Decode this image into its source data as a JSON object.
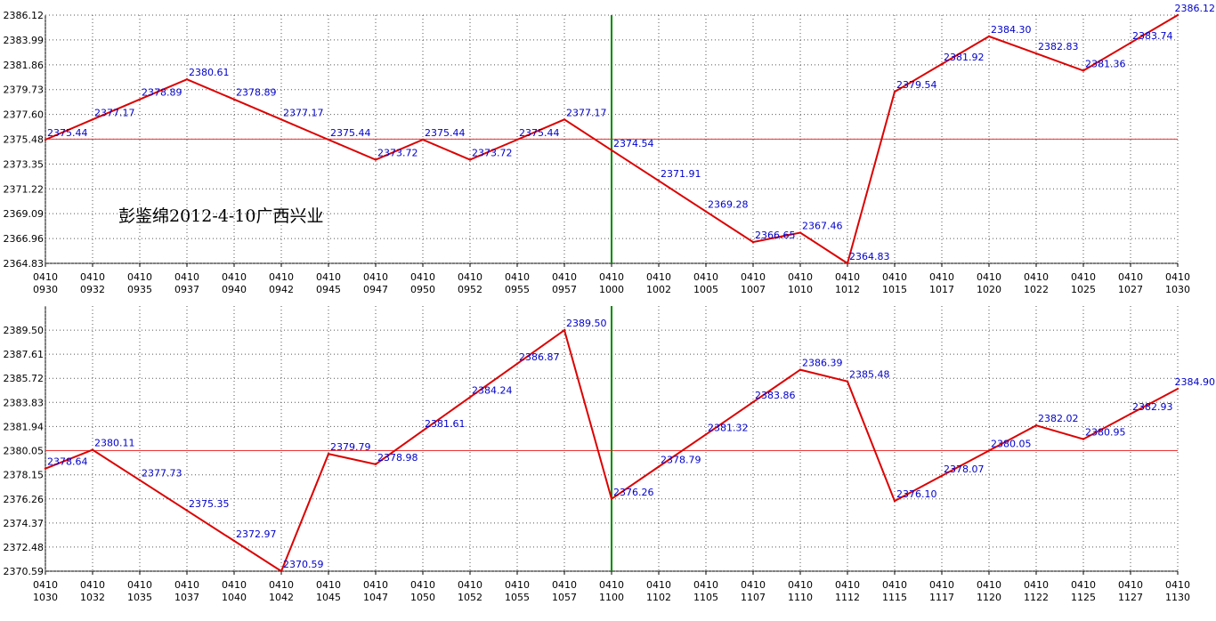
{
  "chart_data": [
    {
      "type": "line",
      "annotation": "彭鉴绵2012-4-10广西兴业",
      "ylim": [
        2364.83,
        2386.12
      ],
      "yticks": [
        "2386.12",
        "2383.99",
        "2381.86",
        "2379.73",
        "2377.60",
        "2375.48",
        "2373.35",
        "2371.22",
        "2369.09",
        "2366.96",
        "2364.83"
      ],
      "xticks": [
        [
          "0410",
          "0930"
        ],
        [
          "0410",
          "0932"
        ],
        [
          "0410",
          "0935"
        ],
        [
          "0410",
          "0937"
        ],
        [
          "0410",
          "0940"
        ],
        [
          "0410",
          "0942"
        ],
        [
          "0410",
          "0945"
        ],
        [
          "0410",
          "0947"
        ],
        [
          "0410",
          "0950"
        ],
        [
          "0410",
          "0952"
        ],
        [
          "0410",
          "0955"
        ],
        [
          "0410",
          "0957"
        ],
        [
          "0410",
          "1000"
        ],
        [
          "0410",
          "1002"
        ],
        [
          "0410",
          "1005"
        ],
        [
          "0410",
          "1007"
        ],
        [
          "0410",
          "1010"
        ],
        [
          "0410",
          "1012"
        ],
        [
          "0410",
          "1015"
        ],
        [
          "0410",
          "1017"
        ],
        [
          "0410",
          "1020"
        ],
        [
          "0410",
          "1022"
        ],
        [
          "0410",
          "1025"
        ],
        [
          "0410",
          "1027"
        ],
        [
          "0410",
          "1030"
        ]
      ],
      "reference_line": 2375.48,
      "marker_tick": "1000",
      "series": [
        {
          "values": [
            2375.44,
            2377.17,
            2378.89,
            2380.61,
            2378.89,
            2377.17,
            2375.44,
            2373.72,
            2375.44,
            2373.72,
            2375.44,
            2377.17,
            2374.54,
            2371.91,
            2369.28,
            2366.65,
            2367.46,
            2364.83,
            2379.54,
            2381.92,
            2384.3,
            2382.83,
            2381.36,
            2383.74,
            2386.12
          ],
          "labels": [
            "2375.44",
            "2377.17",
            "2378.89",
            "2380.61",
            "2378.89",
            "2377.17",
            "2375.44",
            "2373.72",
            "2375.44",
            "2373.72",
            "2375.44",
            "2377.17",
            "2374.54",
            "2371.91",
            "2369.28",
            "2366.65",
            "2367.46",
            "2364.83",
            "2379.54",
            "2381.92",
            "2384.30",
            "2382.83",
            "2381.36",
            "2383.74",
            "2386.12"
          ]
        }
      ],
      "grid": true,
      "colors": {
        "line": "#dd0000",
        "reference": "#ee3333",
        "marker": "#008800",
        "label": "#0000cc",
        "grid": "#555555"
      }
    },
    {
      "type": "line",
      "annotation": "",
      "ylim": [
        2370.59,
        2391.39
      ],
      "yticks": [
        "2389.50",
        "2387.61",
        "2385.72",
        "2383.83",
        "2381.94",
        "2380.05",
        "2378.15",
        "2376.26",
        "2374.37",
        "2372.48",
        "2370.59"
      ],
      "xticks": [
        [
          "0410",
          "1030"
        ],
        [
          "0410",
          "1032"
        ],
        [
          "0410",
          "1035"
        ],
        [
          "0410",
          "1037"
        ],
        [
          "0410",
          "1040"
        ],
        [
          "0410",
          "1042"
        ],
        [
          "0410",
          "1045"
        ],
        [
          "0410",
          "1047"
        ],
        [
          "0410",
          "1050"
        ],
        [
          "0410",
          "1052"
        ],
        [
          "0410",
          "1055"
        ],
        [
          "0410",
          "1057"
        ],
        [
          "0410",
          "1100"
        ],
        [
          "0410",
          "1102"
        ],
        [
          "0410",
          "1105"
        ],
        [
          "0410",
          "1107"
        ],
        [
          "0410",
          "1110"
        ],
        [
          "0410",
          "1112"
        ],
        [
          "0410",
          "1115"
        ],
        [
          "0410",
          "1117"
        ],
        [
          "0410",
          "1120"
        ],
        [
          "0410",
          "1122"
        ],
        [
          "0410",
          "1125"
        ],
        [
          "0410",
          "1127"
        ],
        [
          "0410",
          "1130"
        ]
      ],
      "reference_line": 2380.05,
      "marker_tick": "1100",
      "series": [
        {
          "values": [
            2378.64,
            2380.11,
            2377.73,
            2375.35,
            2372.97,
            2370.59,
            2379.79,
            2378.98,
            2381.61,
            2384.24,
            2386.87,
            2389.5,
            2376.26,
            2378.79,
            2381.32,
            2383.86,
            2386.39,
            2385.48,
            2376.1,
            2378.07,
            2380.05,
            2382.02,
            2380.95,
            2382.93,
            2384.9
          ],
          "labels": [
            "2378.64",
            "2380.11",
            "2377.73",
            "2375.35",
            "2372.97",
            "2370.59",
            "2379.79",
            "2378.98",
            "2381.61",
            "2384.24",
            "2386.87",
            "2389.50",
            "2376.26",
            "2378.79",
            "2381.32",
            "2383.86",
            "2386.39",
            "2385.48",
            "2376.10",
            "2378.07",
            "2380.05",
            "2382.02",
            "2380.95",
            "2382.93",
            "2384.90"
          ]
        }
      ],
      "grid": true,
      "colors": {
        "line": "#dd0000",
        "reference": "#ee3333",
        "marker": "#008800",
        "label": "#0000cc",
        "grid": "#555555"
      }
    }
  ]
}
